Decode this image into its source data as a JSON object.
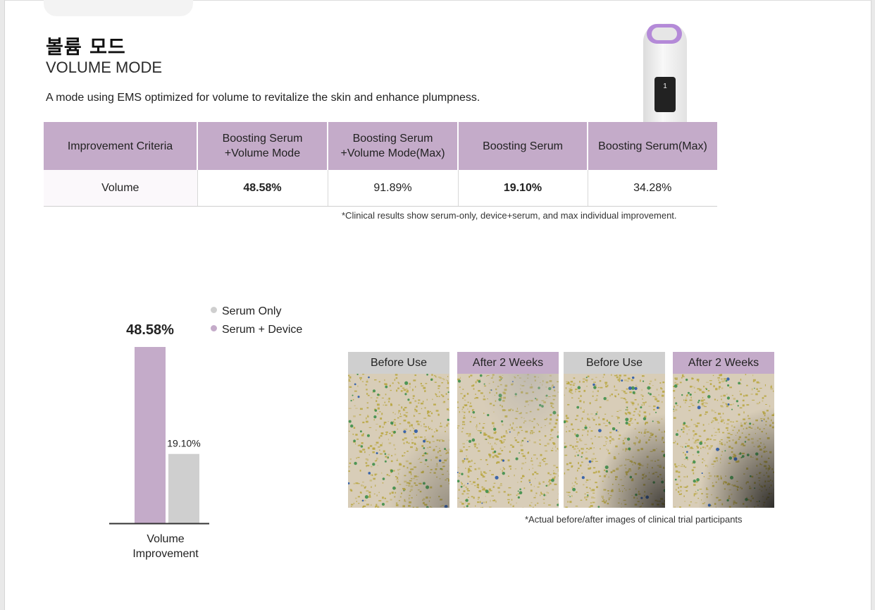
{
  "header": {
    "title_ko": "볼륨 모드",
    "title_en": "VOLUME MODE",
    "description": "A mode using EMS optimized for volume to revitalize the skin and enhance plumpness."
  },
  "table": {
    "columns": [
      "Improvement Criteria",
      "Boosting Serum\n+Volume Mode",
      "Boosting Serum\n+Volume Mode(Max)",
      "Boosting Serum",
      "Boosting Serum(Max)"
    ],
    "rows": [
      [
        "Volume",
        "48.58%",
        "91.89%",
        "19.10%",
        "34.28%"
      ]
    ],
    "note": "*Clinical results show serum-only, device+serum, and max individual improvement."
  },
  "chart_data": {
    "type": "bar",
    "title": "",
    "categories": [
      "Volume\nImprovement"
    ],
    "series": [
      {
        "name": "Serum + Device",
        "values": [
          48.58
        ],
        "label": "48.58%",
        "color": "#c4abc9"
      },
      {
        "name": "Serum Only",
        "values": [
          19.1
        ],
        "label": "19.10%",
        "color": "#cfcfcf"
      }
    ],
    "legend": [
      {
        "name": "Serum Only",
        "color": "#cfcfcf"
      },
      {
        "name": "Serum + Device",
        "color": "#c4abc9"
      }
    ],
    "legend_position": "top-right",
    "xlabel": "Volume\nImprovement",
    "ylabel": "",
    "ylim": [
      0,
      48.58
    ],
    "grid": false
  },
  "photos": {
    "items": [
      {
        "caption": "Before Use",
        "cap_color": "#cfcfcf"
      },
      {
        "caption": "After 2 Weeks",
        "cap_color": "#c4abc9"
      },
      {
        "caption": "Before Use",
        "cap_color": "#cfcfcf"
      },
      {
        "caption": "After 2 Weeks",
        "cap_color": "#c4abc9"
      }
    ],
    "note": "*Actual before/after images of clinical trial participants"
  },
  "device": {
    "screen_glyph": "1"
  },
  "colors": {
    "accent": "#c4abc9",
    "neutral": "#cfcfcf",
    "device_ring": "#b48ad8"
  }
}
